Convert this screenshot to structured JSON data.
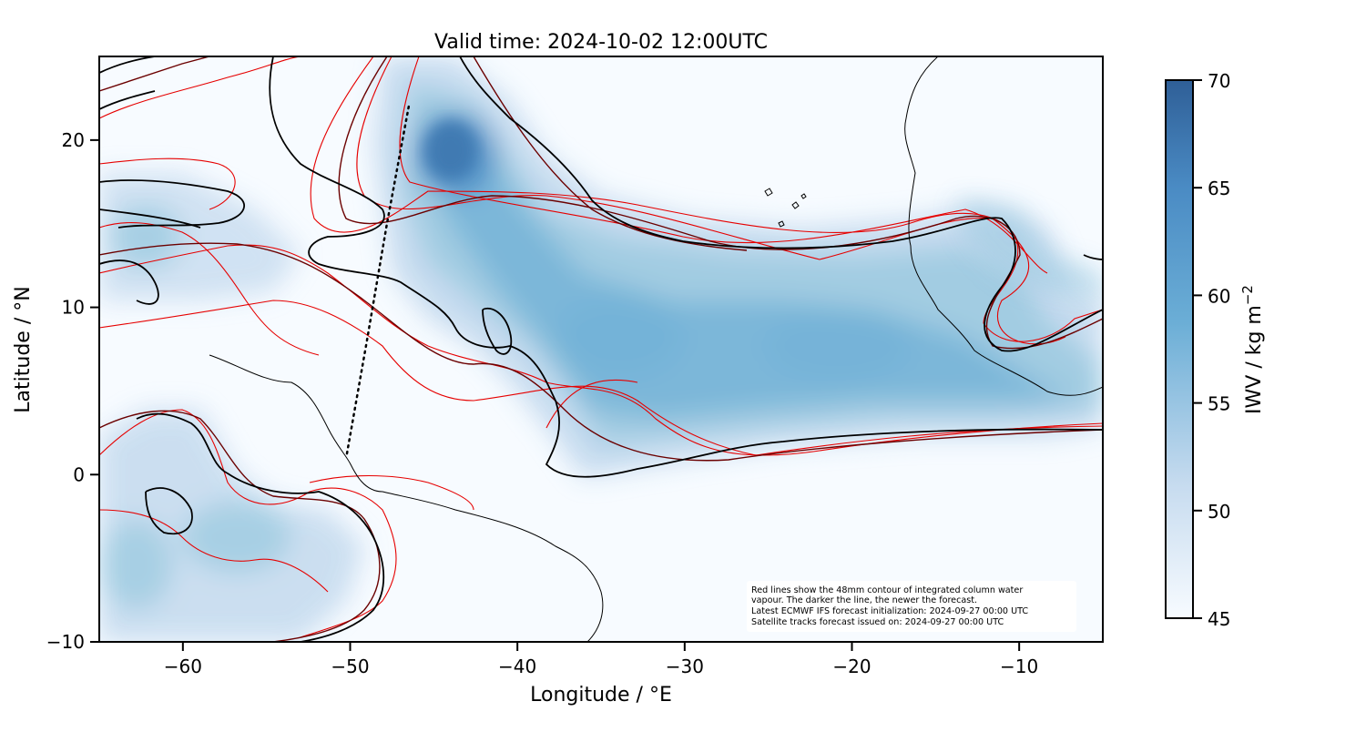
{
  "title": "Valid time: 2024-10-02 12:00UTC",
  "map": {
    "xlabel": "Longitude / °E",
    "ylabel": "Latitude / °N",
    "xlim": [
      -65,
      -5
    ],
    "ylim": [
      -10,
      25
    ],
    "xticks": [
      {
        "value": -60,
        "label": "−60"
      },
      {
        "value": -50,
        "label": "−50"
      },
      {
        "value": -40,
        "label": "−40"
      },
      {
        "value": -30,
        "label": "−30"
      },
      {
        "value": -20,
        "label": "−20"
      },
      {
        "value": -10,
        "label": "−10"
      }
    ],
    "yticks": [
      {
        "value": -10,
        "label": "−10"
      },
      {
        "value": 0,
        "label": "0"
      },
      {
        "value": 10,
        "label": "10"
      },
      {
        "value": 20,
        "label": "20"
      }
    ],
    "satellite_track": {
      "points": [
        [
          -46.5,
          22.0
        ],
        [
          -47.8,
          15.0
        ],
        [
          -49.0,
          8.0
        ],
        [
          -50.2,
          1.2
        ]
      ],
      "color": "#000000"
    },
    "contour_colors": [
      "#000000",
      "#6b0000",
      "#9e0000",
      "#e60000"
    ]
  },
  "colorbar": {
    "label": "IWV / kg m",
    "label_exponent": "−2",
    "min": 45,
    "max": 70,
    "ticks": [
      {
        "value": 45,
        "label": "45"
      },
      {
        "value": 50,
        "label": "50"
      },
      {
        "value": 55,
        "label": "55"
      },
      {
        "value": 60,
        "label": "60"
      },
      {
        "value": 65,
        "label": "65"
      },
      {
        "value": 70,
        "label": "70"
      }
    ],
    "colors": [
      "#f7fbff",
      "#c6dbef",
      "#6baed6",
      "#4a8bc4",
      "#2f5f97"
    ]
  },
  "note": {
    "lines": [
      "Red lines show the 48mm contour of integrated column water",
      "vapour. The darker the line, the newer the forecast.",
      "Latest ECMWF IFS forecast initialization: 2024-09-27 00:00 UTC",
      "Satellite tracks forecast issued on: 2024-09-27 00:00 UTC"
    ]
  }
}
